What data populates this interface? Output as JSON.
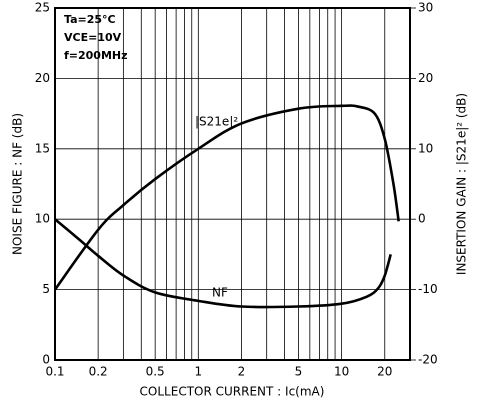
{
  "chart_data": {
    "type": "line",
    "annotations": [
      "Ta=25°C",
      "VCE=10V",
      "f=200MHz"
    ],
    "xlabel": "COLLECTOR CURRENT : Ic(mA)",
    "ylabel": "NOISE FIGURE : NF (dB)",
    "y2label": "INSERTION GAIN : |S21e|² (dB)",
    "xscale": "log",
    "xlim": [
      0.1,
      30
    ],
    "xticks": [
      0.1,
      0.2,
      0.5,
      1,
      2,
      5,
      10,
      20
    ],
    "xminor": [
      0.3,
      0.4,
      0.6,
      0.7,
      0.8,
      0.9,
      3,
      4,
      6,
      7,
      8,
      9,
      30
    ],
    "ylim": [
      0,
      25
    ],
    "yticks": [
      0,
      5,
      10,
      15,
      20,
      25
    ],
    "y2lim": [
      -20,
      30
    ],
    "y2ticks": [
      -20,
      -10,
      0,
      10,
      20,
      30
    ],
    "grid": true,
    "series": [
      {
        "name": "|S21e|²",
        "axis": "y2",
        "color": "#000000",
        "x": [
          0.1,
          0.2,
          0.3,
          0.5,
          1,
          2,
          5,
          10,
          13,
          17,
          20,
          23,
          25
        ],
        "values": [
          -10,
          -1.5,
          2,
          5.7,
          10,
          13.6,
          15.7,
          16.1,
          16,
          15,
          11.4,
          5,
          -0.3
        ]
      },
      {
        "name": "NF",
        "color": "#000000",
        "x": [
          0.1,
          0.15,
          0.2,
          0.3,
          0.5,
          1,
          2,
          5,
          10,
          15,
          18,
          20,
          22
        ],
        "values": [
          10,
          8.5,
          7.4,
          6,
          4.8,
          4.2,
          3.8,
          3.8,
          4.0,
          4.5,
          5.1,
          6,
          7.5
        ]
      }
    ]
  }
}
